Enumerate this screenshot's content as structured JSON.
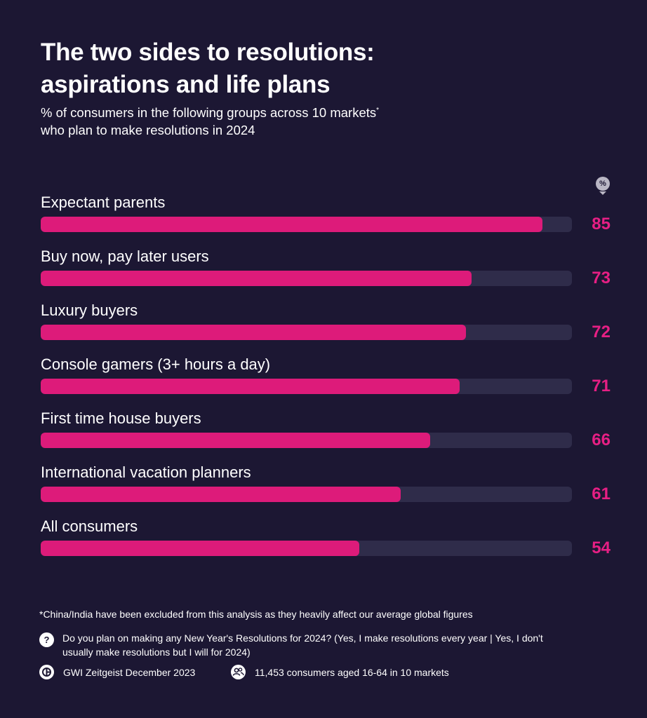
{
  "header": {
    "title_line1": "The two sides to resolutions:",
    "title_line2": "aspirations and life plans",
    "subtitle_line1": "% of consumers in the following groups across 10 markets",
    "subtitle_mark": "*",
    "subtitle_line2": "who plan to make resolutions in 2024"
  },
  "unit_badge": "%",
  "chart_data": {
    "type": "bar",
    "orientation": "horizontal",
    "title": "The two sides to resolutions: aspirations and life plans",
    "subtitle": "% of consumers in the following groups across 10 markets* who plan to make resolutions in 2024",
    "unit": "%",
    "categories": [
      "Expectant parents",
      "Buy now, pay later users",
      "Luxury buyers",
      "Console gamers (3+ hours a day)",
      "First time house buyers",
      "International vacation planners",
      "All consumers"
    ],
    "values": [
      85,
      73,
      72,
      71,
      66,
      61,
      54
    ],
    "xlim": [
      0,
      90
    ],
    "grid": false,
    "legend": "none",
    "colors": {
      "bar": "#dd1b7a",
      "track": "#2f2c4a",
      "value": "#e61f84",
      "background": "#1c1733"
    }
  },
  "footer": {
    "footnote": "*China/India have been excluded from this analysis as they heavily affect our average global figures",
    "question_icon": "?",
    "question": "Do you plan on making any New Year's Resolutions for 2024? (Yes, I make resolutions every year | Yes, I don't usually make resolutions but I will for 2024)",
    "source": "GWI Zeitgeist December 2023",
    "sample": "11,453 consumers aged 16-64 in 10 markets",
    "icons": {
      "question": "question-icon",
      "source": "gwi-logo-icon",
      "sample": "people-icon"
    }
  }
}
